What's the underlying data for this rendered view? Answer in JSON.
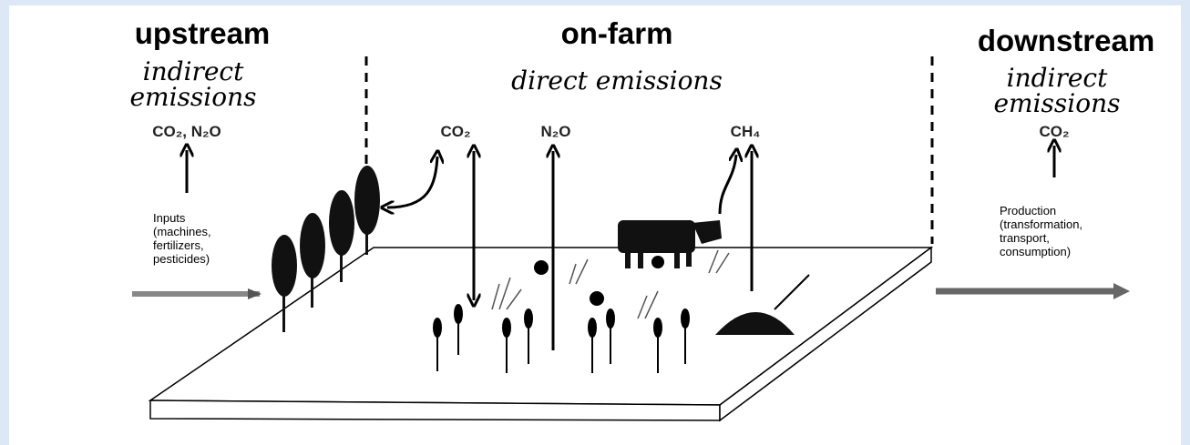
{
  "upstream": {
    "title": "upstream",
    "subtitle": [
      "indirect",
      "emissions"
    ],
    "gases": "CO₂, N₂O",
    "note": [
      "Inputs",
      "(machines,",
      "fertilizers,",
      "pesticides)"
    ]
  },
  "on_farm": {
    "title": "on-farm",
    "subtitle": "direct emissions",
    "gases": [
      "CO₂",
      "N₂O",
      "CH₄"
    ]
  },
  "downstream": {
    "title": "downstream",
    "subtitle": [
      "indirect",
      "emissions"
    ],
    "gases": "CO₂",
    "note": [
      "Production",
      "(transformation,",
      "transport,",
      "consumption)"
    ]
  }
}
